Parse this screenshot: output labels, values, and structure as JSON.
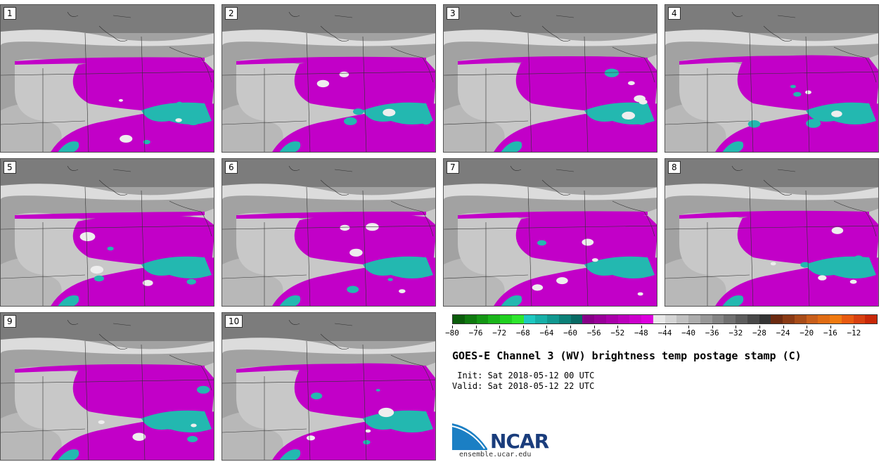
{
  "panels": [
    {
      "label": "1"
    },
    {
      "label": "2"
    },
    {
      "label": "3"
    },
    {
      "label": "4"
    },
    {
      "label": "5"
    },
    {
      "label": "6"
    },
    {
      "label": "7"
    },
    {
      "label": "8"
    },
    {
      "label": "9"
    },
    {
      "label": "10"
    }
  ],
  "colorbar": {
    "ticks": [
      "−80",
      "−76",
      "−72",
      "−68",
      "−64",
      "−60",
      "−56",
      "−52",
      "−48",
      "−44",
      "−40",
      "−36",
      "−32",
      "−28",
      "−24",
      "−20",
      "−16",
      "−12"
    ],
    "colors": [
      "#0a5c0a",
      "#0f7a0f",
      "#149614",
      "#1ab51a",
      "#20d020",
      "#2ee62e",
      "#1ec8c0",
      "#17b0a8",
      "#119890",
      "#0c8078",
      "#086a64",
      "#880088",
      "#990099",
      "#aa00aa",
      "#bb00bb",
      "#cc00cc",
      "#dd00dd",
      "#e8e8e8",
      "#d4d4d4",
      "#c0c0c0",
      "#acacac",
      "#989898",
      "#848484",
      "#707070",
      "#5c5c5c",
      "#484848",
      "#343434",
      "#6b2a10",
      "#8a3a14",
      "#a84c18",
      "#c85e1a",
      "#e06c14",
      "#f07a10",
      "#e85a10",
      "#d84010",
      "#c82808"
    ]
  },
  "title": "GOES-E Channel 3 (WV) brightness temp postage stamp (C)",
  "init": " Init: Sat 2018-05-12 00 UTC",
  "valid": "Valid: Sat 2018-05-12 22 UTC",
  "logo": {
    "text": "NCAR",
    "url": "ensemble.ucar.edu"
  }
}
